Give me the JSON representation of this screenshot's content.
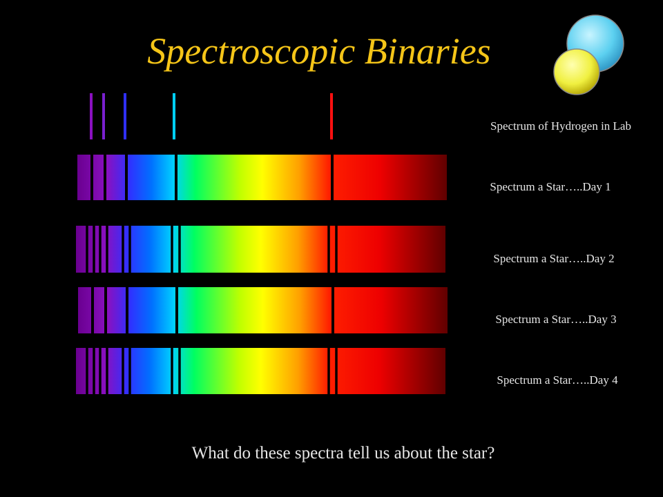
{
  "title": "Spectroscopic Binaries",
  "spectra": [
    "Spectrum of Hydrogen in Lab",
    "Spectrum a Star…..Day 1",
    "Spectrum a Star…..Day 2",
    "Spectrum a Star…..Day 3",
    "Spectrum a Star…..Day 4"
  ],
  "question": "What do these spectra tell us about the star?"
}
